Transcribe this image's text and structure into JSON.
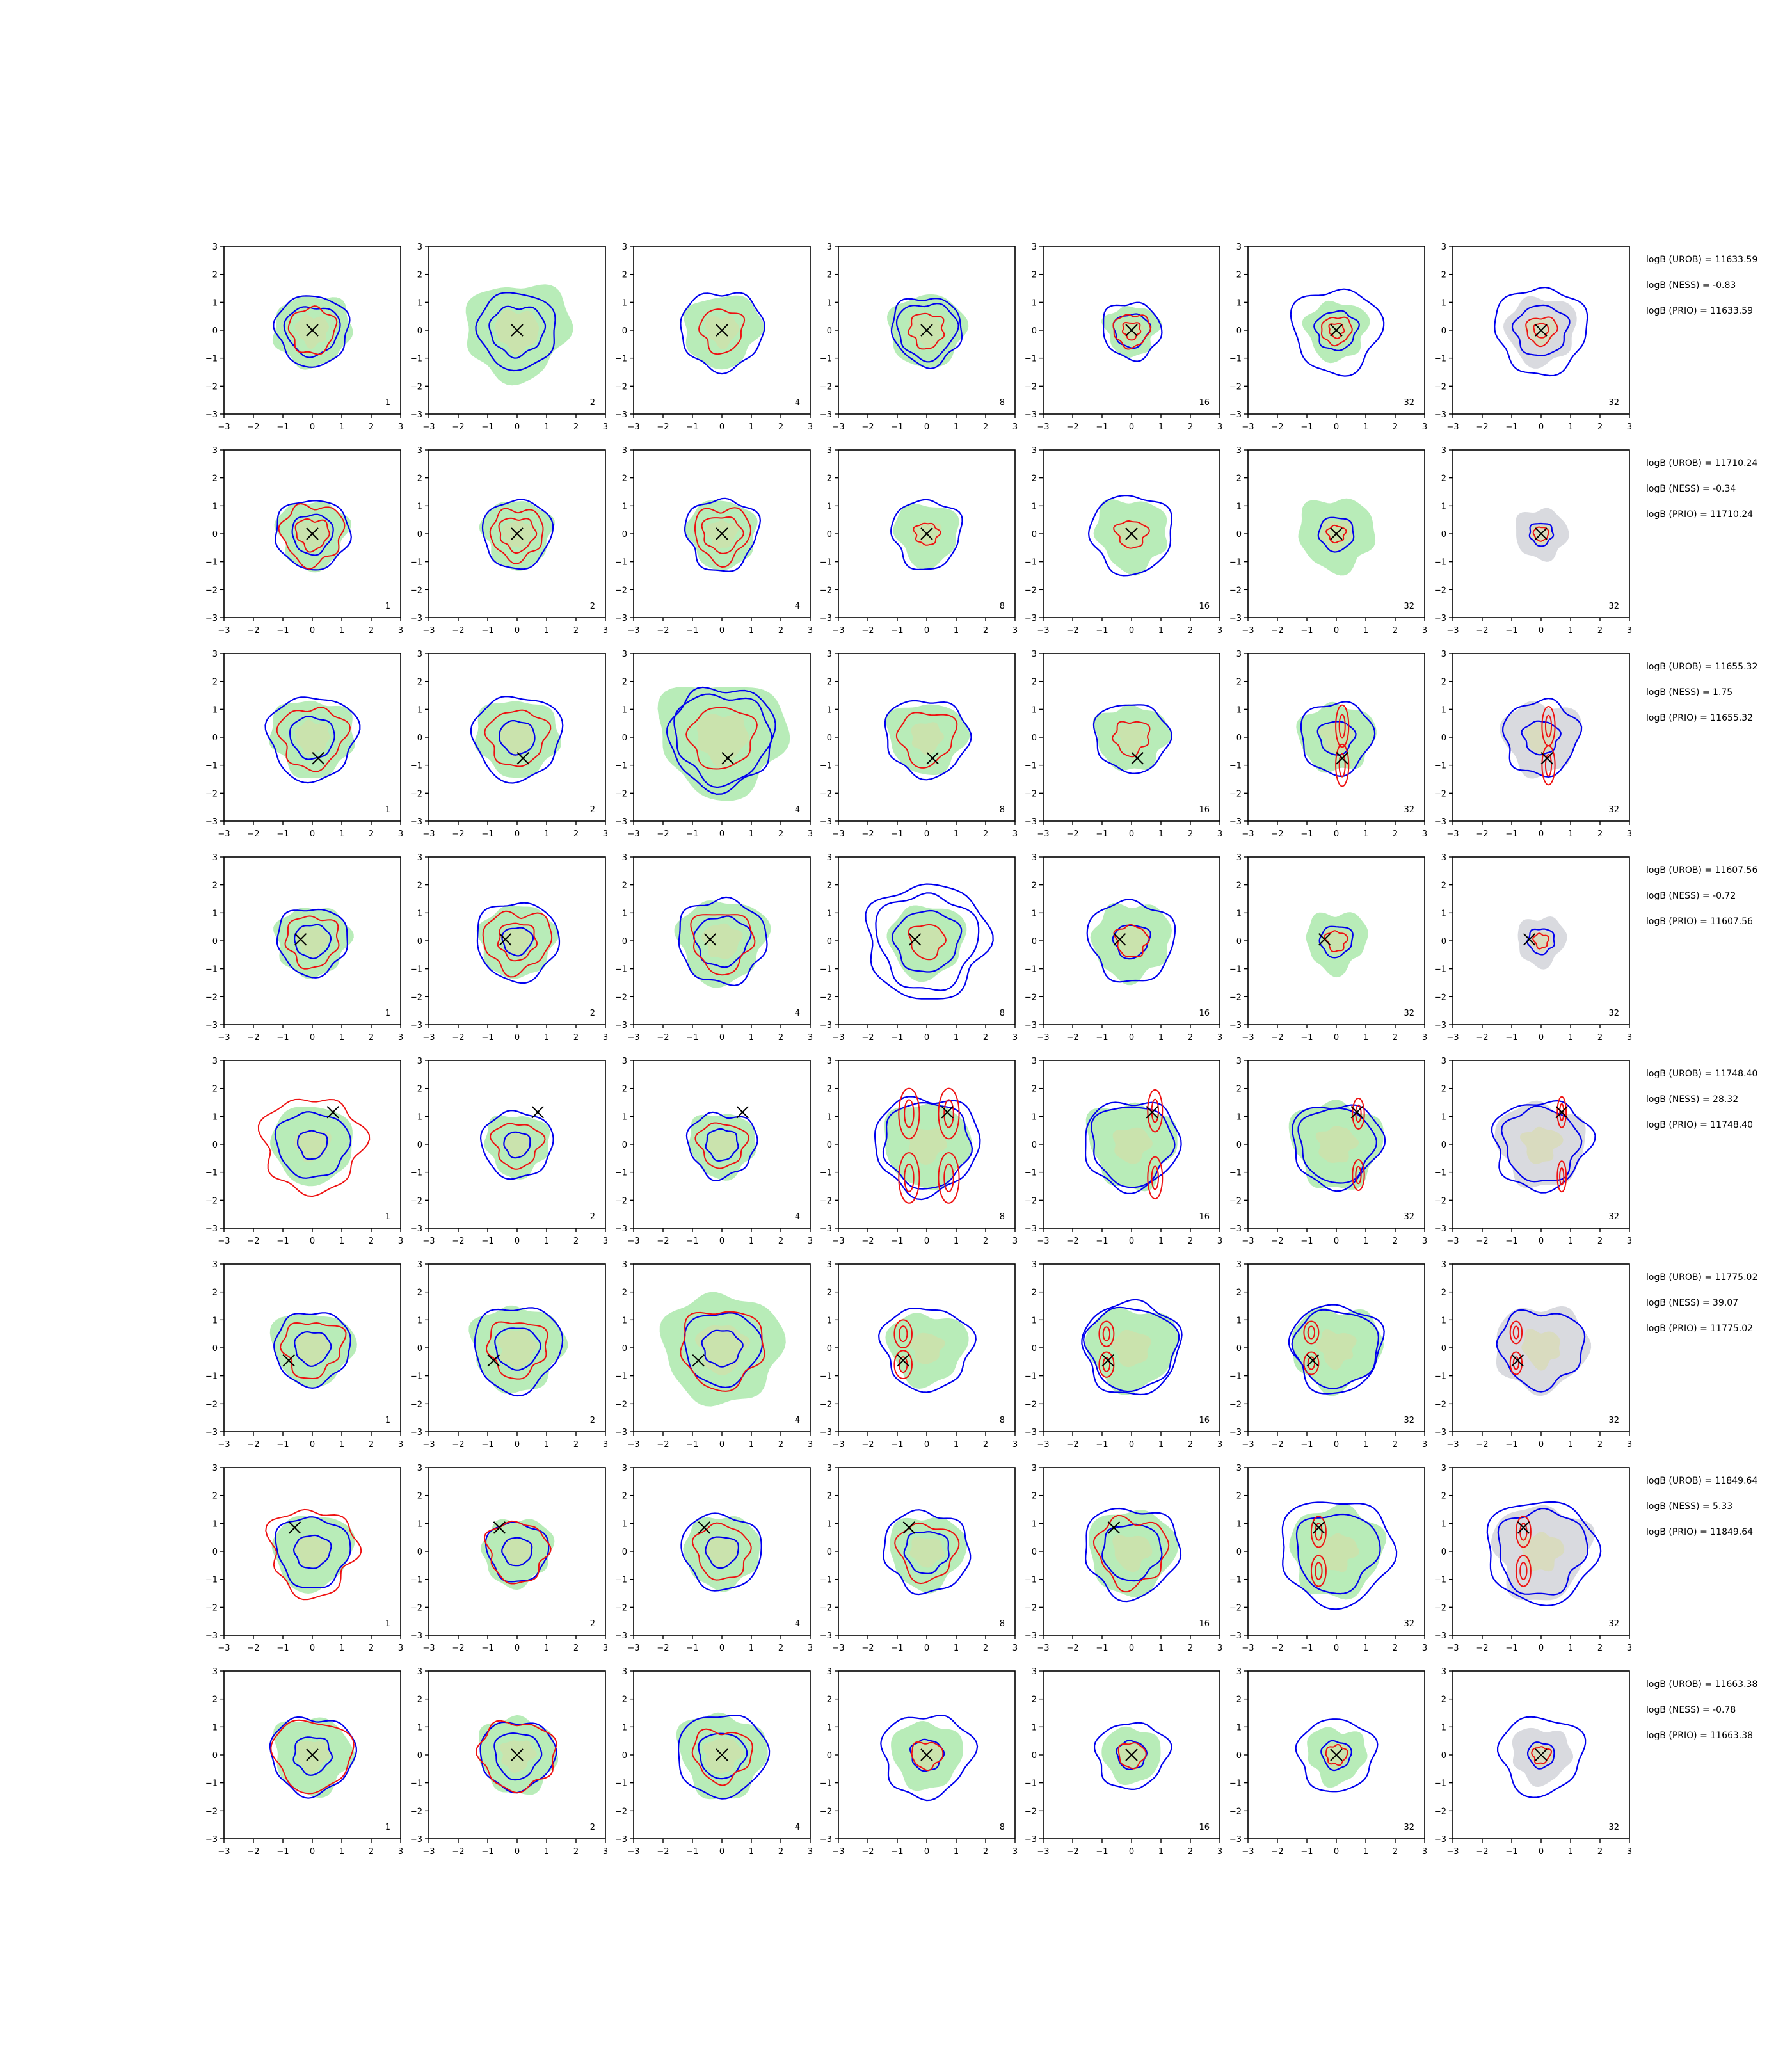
{
  "colors": {
    "panel_fill_color": "#b8ecb8",
    "panel_fill_color_last_column": "#d9dadf",
    "inner_contour_color": "#d8dca4",
    "blue_contour_color": "#0000ee",
    "red_contour_color": "#ee1111",
    "marker_color": "#000000",
    "axis_color": "#000000"
  },
  "chart_data": {
    "type": "contour-grid",
    "rows": 8,
    "columns": 7,
    "xlim": [
      -3,
      3
    ],
    "ylim": [
      -3,
      3
    ],
    "xticks": [
      "−3",
      "−2",
      "−1",
      "0",
      "1",
      "2",
      "3"
    ],
    "yticks": [
      "3",
      "2",
      "1",
      "0",
      "−1",
      "−2",
      "−3"
    ],
    "column_labels": [
      "1",
      "2",
      "4",
      "8",
      "16",
      "32",
      "32"
    ],
    "rows_data": [
      {
        "logB": [
          "logB (UROB) = 11633.59",
          "logB (NESS) = -0.83",
          "logB (PRIO) = 11633.59"
        ],
        "marker": [
          0.0,
          0.0
        ],
        "green": [
          1.3,
          1.75,
          1.3,
          1.3,
          0.9,
          1.05,
          1.2
        ],
        "blue": [
          [
            0.9,
            1.25
          ],
          [
            0.9,
            1.35
          ],
          [
            1.4
          ],
          [
            1.0,
            1.2
          ],
          [
            0.6,
            1.0
          ],
          [
            0.7,
            1.5
          ],
          [
            0.9,
            1.55
          ]
        ],
        "red": [
          [
            0.8
          ],
          [],
          [
            0.75
          ],
          [
            0.6
          ],
          [
            0.3,
            0.6
          ],
          [
            0.25,
            0.5
          ],
          [
            0.25,
            0.5
          ]
        ]
      },
      {
        "logB": [
          "logB (UROB) = 11710.24",
          "logB (NESS) = -0.34",
          "logB (PRIO) = 11710.24"
        ],
        "marker": [
          0.0,
          0.0
        ],
        "green": [
          1.2,
          1.2,
          1.2,
          1.1,
          1.25,
          1.3,
          0.9
        ],
        "blue": [
          [
            0.7,
            1.25
          ],
          [
            1.2
          ],
          [
            1.25
          ],
          [
            1.2
          ],
          [
            1.4
          ],
          [
            0.6
          ],
          [
            0.4
          ]
        ],
        "red": [
          [
            0.55,
            1.05
          ],
          [
            0.6,
            0.9
          ],
          [
            0.65,
            0.95
          ],
          [
            0.4
          ],
          [
            0.5
          ],
          [
            0.3
          ],
          [
            0.25
          ]
        ]
      },
      {
        "logB": [
          "logB (UROB) = 11655.32",
          "logB (NESS) = 1.75",
          "logB (PRIO) = 11655.32"
        ],
        "marker": [
          0.2,
          -0.75
        ],
        "green": [
          1.4,
          1.4,
          2.1,
          1.3,
          1.2,
          1.25,
          1.3
        ],
        "blue": [
          [
            0.75,
            1.5
          ],
          [
            0.6,
            1.5
          ],
          [
            1.6,
            1.8
          ],
          [
            1.4
          ],
          [
            1.25
          ],
          [
            0.6,
            1.25
          ],
          [
            0.6,
            1.3
          ]
        ],
        "red": [
          [
            1.1
          ],
          [
            1.0
          ],
          [
            1.1
          ],
          [
            0.95
          ],
          [
            0.6
          ],
          [],
          []
        ]
      },
      {
        "logB": [
          "logB (UROB) = 11607.56",
          "logB (NESS) = -0.72",
          "logB (PRIO) = 11607.56"
        ],
        "marker": [
          -0.4,
          0.05
        ],
        "green": [
          1.25,
          1.3,
          1.5,
          1.3,
          1.35,
          1.05,
          0.85
        ],
        "blue": [
          [
            0.6,
            1.2
          ],
          [
            0.5,
            1.4
          ],
          [
            0.9,
            1.5
          ],
          [
            1.1,
            1.7,
            2.05
          ],
          [
            0.6,
            1.45
          ],
          [
            0.55
          ],
          [
            0.45
          ]
        ],
        "red": [
          [
            0.9
          ],
          [
            0.65,
            1.1
          ],
          [
            1.05
          ],
          [
            0.6
          ],
          [
            0.55
          ],
          [
            0.35
          ],
          [
            0.25
          ]
        ]
      },
      {
        "logB": [
          "logB (UROB) = 11748.40",
          "logB (NESS) = 28.32",
          "logB (PRIO) = 11748.40"
        ],
        "marker": [
          0.7,
          1.15
        ],
        "green": [
          1.4,
          1.1,
          1.15,
          1.5,
          1.5,
          1.55,
          1.5
        ],
        "blue": [
          [
            0.5,
            1.2
          ],
          [
            0.45,
            1.2
          ],
          [
            0.55,
            1.15
          ],
          [
            1.5,
            1.75
          ],
          [
            1.4,
            1.6
          ],
          [
            1.3,
            1.5
          ],
          [
            1.3,
            1.6
          ]
        ],
        "red": [
          [
            1.7
          ],
          [
            0.8
          ],
          [
            0.8
          ],
          [],
          [],
          [],
          []
        ]
      },
      {
        "logB": [
          "logB (UROB) = 11775.02",
          "logB (NESS) = 39.07",
          "logB (PRIO) = 11775.02"
        ],
        "marker": [
          -0.8,
          -0.45
        ],
        "green": [
          1.35,
          1.55,
          2.0,
          1.3,
          1.5,
          1.5,
          1.55
        ],
        "blue": [
          [
            0.6,
            1.3
          ],
          [
            0.75,
            1.5
          ],
          [
            0.65,
            1.3
          ],
          [
            1.5
          ],
          [
            1.5,
            1.65
          ],
          [
            1.4,
            1.55
          ],
          [
            1.4
          ]
        ],
        "red": [
          [
            1.0
          ],
          [
            1.0
          ],
          [
            1.4
          ],
          [],
          [],
          [],
          []
        ]
      },
      {
        "logB": [
          "logB (UROB) = 11849.64",
          "logB (NESS) = 5.33",
          "logB (PRIO) = 11849.64"
        ],
        "marker": [
          -0.6,
          0.85
        ],
        "green": [
          1.35,
          1.2,
          1.3,
          1.3,
          1.5,
          1.6,
          1.65
        ],
        "blue": [
          [
            0.6,
            1.25
          ],
          [
            0.5,
            1.05
          ],
          [
            0.55,
            1.35
          ],
          [
            0.75,
            1.45
          ],
          [
            1.0,
            1.6
          ],
          [
            1.4,
            1.9
          ],
          [
            1.5,
            1.85
          ]
        ],
        "red": [
          [
            1.5
          ],
          [
            1.05
          ],
          [
            0.95
          ],
          [
            1.0
          ],
          [
            1.2
          ],
          [],
          []
        ]
      },
      {
        "logB": [
          "logB (UROB) = 11663.38",
          "logB (NESS) = -0.78",
          "logB (PRIO) = 11663.38"
        ],
        "marker": [
          0.0,
          0.0
        ],
        "green": [
          1.35,
          1.35,
          1.5,
          1.2,
          1.0,
          1.0,
          1.0
        ],
        "blue": [
          [
            0.65,
            1.4
          ],
          [
            0.8,
            1.25
          ],
          [
            0.8,
            1.5
          ],
          [
            0.55,
            1.5
          ],
          [
            0.5,
            1.2
          ],
          [
            0.5,
            1.3
          ],
          [
            0.45,
            1.4
          ]
        ],
        "red": [
          [
            1.3
          ],
          [
            1.25
          ],
          [
            0.95
          ],
          [
            0.5
          ],
          [
            0.45
          ],
          [
            0.35
          ],
          [
            0.3
          ]
        ]
      }
    ],
    "red_ellipses": {
      "2": {
        "5": [
          [
            0.2,
            0.4,
            0.22,
            0.75
          ],
          [
            0.2,
            -1.0,
            0.22,
            0.75
          ]
        ],
        "6": [
          [
            0.25,
            0.4,
            0.22,
            0.7
          ],
          [
            0.25,
            -1.0,
            0.22,
            0.7
          ]
        ]
      },
      "4": {
        "3": [
          [
            -0.6,
            1.1,
            0.35,
            0.9
          ],
          [
            0.75,
            1.1,
            0.35,
            0.9
          ],
          [
            -0.6,
            -1.2,
            0.35,
            0.9
          ],
          [
            0.75,
            -1.2,
            0.35,
            0.9
          ]
        ],
        "4": [
          [
            0.8,
            1.2,
            0.25,
            0.75
          ],
          [
            0.8,
            -1.2,
            0.25,
            0.75
          ]
        ],
        "5": [
          [
            0.75,
            1.1,
            0.2,
            0.55
          ],
          [
            0.75,
            -1.1,
            0.2,
            0.55
          ]
        ],
        "6": [
          [
            0.7,
            1.15,
            0.15,
            0.55
          ],
          [
            0.7,
            -1.15,
            0.15,
            0.55
          ]
        ]
      },
      "5": {
        "3": [
          [
            -0.8,
            0.5,
            0.3,
            0.5
          ],
          [
            -0.8,
            -0.6,
            0.3,
            0.5
          ]
        ],
        "4": [
          [
            -0.85,
            0.5,
            0.25,
            0.45
          ],
          [
            -0.85,
            -0.6,
            0.25,
            0.45
          ]
        ],
        "5": [
          [
            -0.85,
            0.55,
            0.25,
            0.4
          ],
          [
            -0.85,
            -0.55,
            0.25,
            0.4
          ]
        ],
        "6": [
          [
            -0.85,
            0.55,
            0.2,
            0.4
          ],
          [
            -0.85,
            -0.55,
            0.2,
            0.4
          ]
        ]
      },
      "6": {
        "5": [
          [
            -0.6,
            0.7,
            0.25,
            0.55
          ],
          [
            -0.6,
            -0.7,
            0.25,
            0.55
          ]
        ],
        "6": [
          [
            -0.6,
            0.7,
            0.25,
            0.55
          ],
          [
            -0.6,
            -0.7,
            0.25,
            0.55
          ]
        ]
      }
    }
  }
}
